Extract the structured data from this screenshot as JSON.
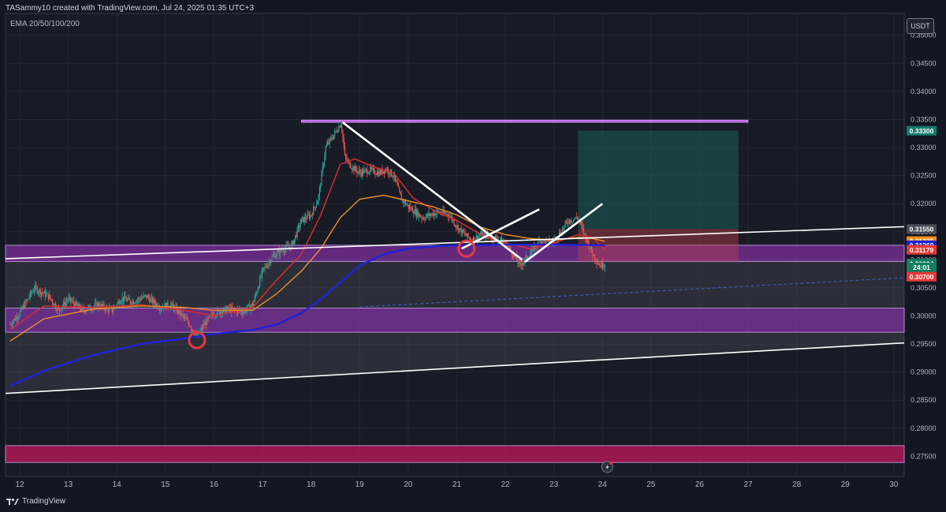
{
  "header": {
    "attribution": "TASammy10 created with TradingView.com, Jul 24, 2025 01:35 UTC+3",
    "indicator_label": "EMA 20/50/100/200",
    "currency": "USDT"
  },
  "footer": {
    "brand": "TradingView"
  },
  "chart_data": {
    "type": "candlestick",
    "y_axis": {
      "ylim": [
        0.2714,
        0.3539
      ],
      "ticks": [
        "0.35000",
        "0.34500",
        "0.34000",
        "0.33500",
        "0.33000",
        "0.32500",
        "0.32000",
        "0.31500",
        "0.31000",
        "0.30500",
        "0.30000",
        "0.29500",
        "0.29000",
        "0.28500",
        "0.28000",
        "0.27500"
      ],
      "position": "right"
    },
    "x_axis": {
      "ticks": [
        "12",
        "13",
        "14",
        "15",
        "16",
        "17",
        "18",
        "19",
        "20",
        "21",
        "22",
        "23",
        "24",
        "25",
        "26",
        "27",
        "28",
        "29",
        "30"
      ],
      "start_day": 11.8,
      "bars_per_day": 48
    },
    "price_path": [
      [
        11.8,
        0.2985
      ],
      [
        12.0,
        0.3005
      ],
      [
        12.3,
        0.305
      ],
      [
        12.6,
        0.3035
      ],
      [
        12.8,
        0.301
      ],
      [
        13.0,
        0.303
      ],
      [
        13.3,
        0.301
      ],
      [
        13.6,
        0.302
      ],
      [
        13.9,
        0.301
      ],
      [
        14.1,
        0.3032
      ],
      [
        14.3,
        0.3025
      ],
      [
        14.6,
        0.3035
      ],
      [
        14.9,
        0.3015
      ],
      [
        15.1,
        0.302
      ],
      [
        15.3,
        0.3005
      ],
      [
        15.5,
        0.2985
      ],
      [
        15.65,
        0.2962
      ],
      [
        15.8,
        0.2985
      ],
      [
        16.0,
        0.3005
      ],
      [
        16.3,
        0.3012
      ],
      [
        16.6,
        0.3008
      ],
      [
        16.8,
        0.302
      ],
      [
        17.0,
        0.308
      ],
      [
        17.2,
        0.3105
      ],
      [
        17.4,
        0.3118
      ],
      [
        17.6,
        0.3125
      ],
      [
        17.8,
        0.317
      ],
      [
        18.0,
        0.318
      ],
      [
        18.15,
        0.321
      ],
      [
        18.3,
        0.33
      ],
      [
        18.45,
        0.332
      ],
      [
        18.62,
        0.3345
      ],
      [
        18.7,
        0.328
      ],
      [
        18.85,
        0.3265
      ],
      [
        19.0,
        0.3255
      ],
      [
        19.2,
        0.326
      ],
      [
        19.4,
        0.3255
      ],
      [
        19.55,
        0.3262
      ],
      [
        19.7,
        0.325
      ],
      [
        19.85,
        0.321
      ],
      [
        20.0,
        0.3195
      ],
      [
        20.3,
        0.3175
      ],
      [
        20.6,
        0.3185
      ],
      [
        20.85,
        0.318
      ],
      [
        21.0,
        0.316
      ],
      [
        21.1,
        0.315
      ],
      [
        21.3,
        0.3135
      ],
      [
        21.5,
        0.3145
      ],
      [
        21.75,
        0.314
      ],
      [
        21.9,
        0.3135
      ],
      [
        22.05,
        0.3125
      ],
      [
        22.3,
        0.309
      ],
      [
        22.5,
        0.311
      ],
      [
        22.7,
        0.3135
      ],
      [
        22.95,
        0.313
      ],
      [
        23.1,
        0.3145
      ],
      [
        23.3,
        0.317
      ],
      [
        23.5,
        0.3175
      ],
      [
        23.65,
        0.314
      ],
      [
        23.8,
        0.311
      ],
      [
        23.95,
        0.309
      ],
      [
        24.05,
        0.3093
      ]
    ],
    "ema_series": [
      {
        "name": "EMA 20",
        "color": "#d32f2f",
        "values": [
          [
            11.8,
            0.2975
          ],
          [
            12.5,
            0.3018
          ],
          [
            13.5,
            0.3015
          ],
          [
            14.5,
            0.302
          ],
          [
            15.4,
            0.301
          ],
          [
            16.0,
            0.3
          ],
          [
            16.8,
            0.3015
          ],
          [
            17.3,
            0.3065
          ],
          [
            17.8,
            0.311
          ],
          [
            18.2,
            0.318
          ],
          [
            18.6,
            0.327
          ],
          [
            18.9,
            0.328
          ],
          [
            19.3,
            0.3265
          ],
          [
            19.7,
            0.3255
          ],
          [
            20.1,
            0.321
          ],
          [
            20.6,
            0.3185
          ],
          [
            21.0,
            0.317
          ],
          [
            21.5,
            0.3145
          ],
          [
            22.0,
            0.313
          ],
          [
            22.5,
            0.312
          ],
          [
            23.0,
            0.313
          ],
          [
            23.5,
            0.3145
          ],
          [
            23.8,
            0.314
          ],
          [
            24.05,
            0.3118
          ]
        ]
      },
      {
        "name": "EMA 50",
        "color": "#e08a2c",
        "values": [
          [
            11.8,
            0.2955
          ],
          [
            12.5,
            0.2995
          ],
          [
            13.5,
            0.3012
          ],
          [
            14.5,
            0.3018
          ],
          [
            15.4,
            0.3015
          ],
          [
            16.0,
            0.301
          ],
          [
            16.8,
            0.301
          ],
          [
            17.3,
            0.304
          ],
          [
            17.8,
            0.308
          ],
          [
            18.2,
            0.312
          ],
          [
            18.6,
            0.3175
          ],
          [
            19.0,
            0.3208
          ],
          [
            19.5,
            0.3215
          ],
          [
            20.0,
            0.3205
          ],
          [
            20.5,
            0.3195
          ],
          [
            21.0,
            0.318
          ],
          [
            21.5,
            0.3158
          ],
          [
            22.0,
            0.3145
          ],
          [
            22.5,
            0.3138
          ],
          [
            23.0,
            0.3135
          ],
          [
            23.5,
            0.314
          ],
          [
            23.8,
            0.3138
          ],
          [
            24.05,
            0.3133
          ]
        ]
      },
      {
        "name": "EMA 200",
        "color": "#1e22d6",
        "values": [
          [
            11.8,
            0.2875
          ],
          [
            12.5,
            0.2902
          ],
          [
            13.5,
            0.293
          ],
          [
            14.5,
            0.295
          ],
          [
            15.4,
            0.296
          ],
          [
            16.0,
            0.2968
          ],
          [
            16.8,
            0.2975
          ],
          [
            17.3,
            0.2985
          ],
          [
            17.8,
            0.3005
          ],
          [
            18.2,
            0.303
          ],
          [
            18.6,
            0.306
          ],
          [
            19.0,
            0.309
          ],
          [
            19.5,
            0.311
          ],
          [
            20.0,
            0.312
          ],
          [
            20.5,
            0.3124
          ],
          [
            21.0,
            0.3126
          ],
          [
            22.0,
            0.3127
          ],
          [
            23.0,
            0.3127
          ],
          [
            24.05,
            0.3126
          ]
        ]
      }
    ],
    "price_labels": [
      {
        "text": "0.33300",
        "value": 0.333,
        "color": "#167a6e"
      },
      {
        "text": "0.31550",
        "value": 0.3155,
        "color": "#4a4d57"
      },
      {
        "text": "0.31335",
        "value": 0.31335,
        "color": "#f08a19"
      },
      {
        "text": "0.31260",
        "value": 0.3126,
        "color": "#1e22d6"
      },
      {
        "text": "0.31179",
        "value": 0.31179,
        "color": "#e53935"
      },
      {
        "text": "0.30934",
        "value": 0.30934,
        "color": "#157d62"
      },
      {
        "text": "24:01",
        "value": 0.30865,
        "color": "#157d62"
      },
      {
        "text": "0.30700",
        "value": 0.307,
        "color": "#e53935"
      }
    ],
    "zones": [
      {
        "name": "purple-zone-upper",
        "from": 0.3097,
        "to": 0.3126,
        "color": "#7b2f9b"
      },
      {
        "name": "purple-zone-lower",
        "from": 0.2971,
        "to": 0.3014,
        "color": "#7b2f9b"
      },
      {
        "name": "pink-zone-bottom",
        "from": 0.2739,
        "to": 0.2769,
        "color": "#c2185b"
      }
    ],
    "position_tool": {
      "start": 23.5,
      "end": 26.8,
      "entry": 0.3155,
      "target": 0.333,
      "stop": 0.3097
    },
    "resistance_line": {
      "start": 17.8,
      "end": 27.0,
      "value": 0.3347
    }
  }
}
